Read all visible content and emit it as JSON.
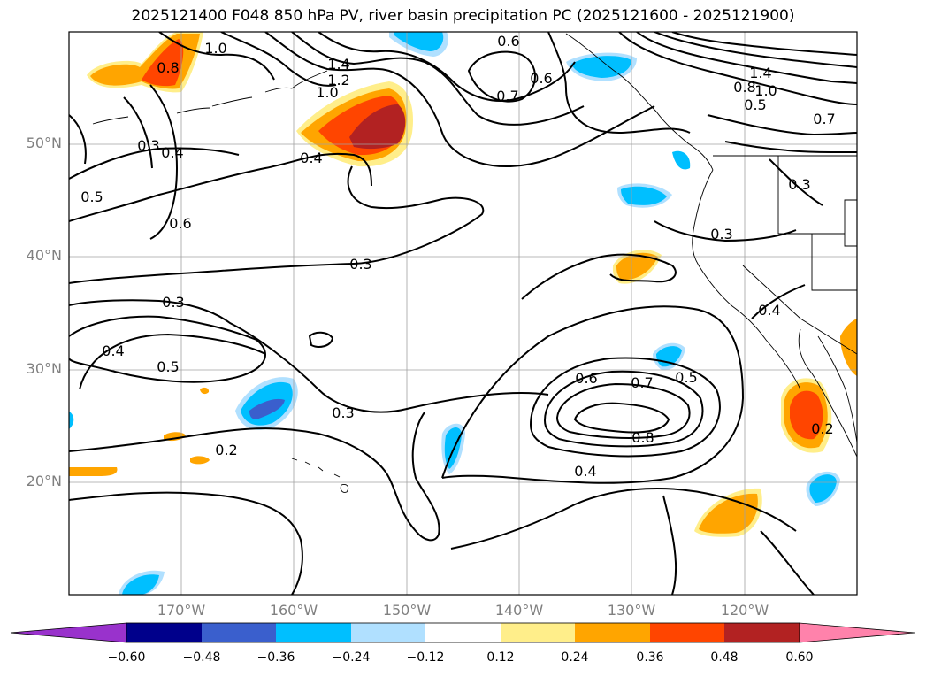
{
  "title": "2025121400 F048 850 hPa PV, river basin precipitation PC (2025121600 - 2025121900)",
  "map": {
    "lon_range": [
      -180,
      -110
    ],
    "lat_range": [
      10,
      60
    ],
    "lat_ticks": [
      "50°N",
      "40°N",
      "30°N",
      "20°N"
    ],
    "lon_ticks": [
      "170°W",
      "160°W",
      "150°W",
      "140°W",
      "130°W",
      "120°W"
    ],
    "contour_labels": [
      "1.0",
      "0.8",
      "1.4",
      "1.2",
      "1.0",
      "0.4",
      "0.3",
      "0.4",
      "0.5",
      "0.6",
      "0.3",
      "0.3",
      "0.4",
      "0.5",
      "0.3",
      "0.2",
      "0.6",
      "0.7",
      "0.6",
      "0.6",
      "0.7",
      "0.5",
      "0.8",
      "0.4",
      "1.4",
      "0.8",
      "1.0",
      "0.5",
      "0.7",
      "0.3",
      "0.3",
      "0.4",
      "0.2"
    ]
  },
  "colorbar": {
    "colors": [
      "#9932cc",
      "#00008b",
      "#3a5fcd",
      "#00bfff",
      "#b0e0ff",
      "#ffffff",
      "#ffee8a",
      "#ffa500",
      "#ff4500",
      "#b22222",
      "#ff82ab"
    ],
    "ticks": [
      "−0.60",
      "−0.48",
      "−0.36",
      "−0.24",
      "−0.12",
      "0.12",
      "0.24",
      "0.36",
      "0.48",
      "0.60"
    ]
  }
}
